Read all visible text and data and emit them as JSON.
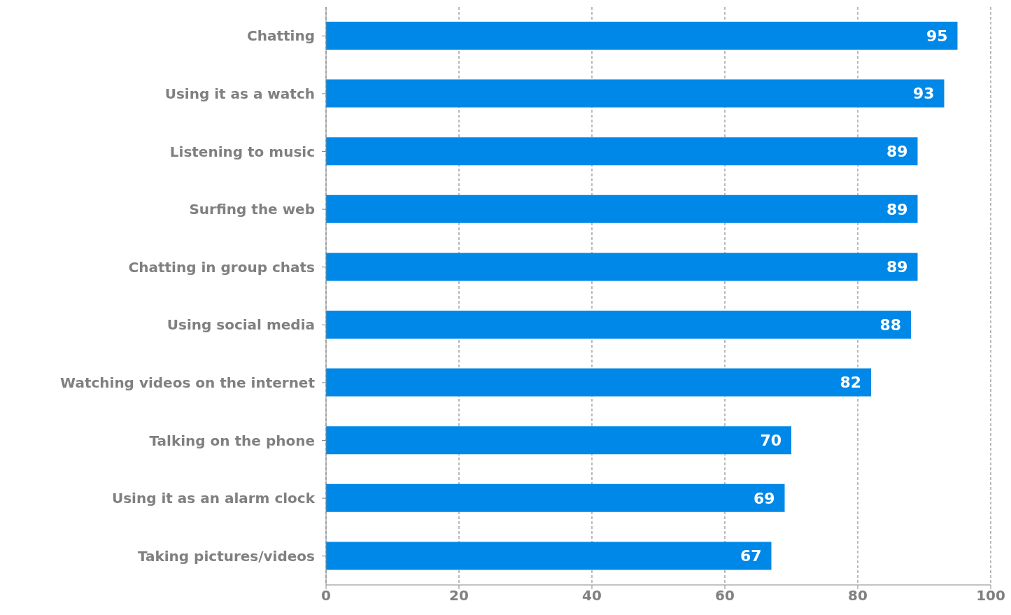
{
  "chart_data": {
    "type": "bar",
    "orientation": "horizontal",
    "categories": [
      "Chatting",
      "Using it as a watch",
      "Listening to music",
      "Surfing the web",
      "Chatting in group chats",
      "Using social media",
      "Watching videos on the internet",
      "Talking on the phone",
      "Using it as an alarm clock",
      "Taking pictures/videos"
    ],
    "values": [
      95,
      93,
      89,
      89,
      89,
      88,
      82,
      70,
      69,
      67
    ],
    "color": "#0088e8",
    "xlim": [
      0,
      100
    ],
    "xticks": [
      0,
      20,
      40,
      60,
      80,
      100
    ],
    "grid": "x",
    "data_labels": true
  }
}
